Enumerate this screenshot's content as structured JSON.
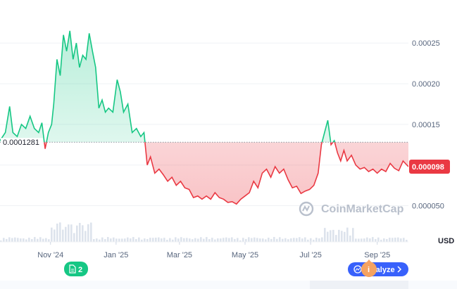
{
  "chart_data": {
    "type": "area",
    "currency_label": "USD",
    "watermark": "CoinMarketCap",
    "reference_value": 0.0001281,
    "reference_label": "0.0001281",
    "current_value": 9.8e-05,
    "current_label": "0.000098",
    "y_ticks": [
      "0.00025",
      "0.00020",
      "0.00015",
      "0.000050"
    ],
    "y_tick_values": [
      0.00025,
      0.0002,
      0.00015,
      5e-05
    ],
    "ylim": [
      5.5e-06,
      0.0002995
    ],
    "x_ticks": [
      "Nov '24",
      "Jan '25",
      "Mar '25",
      "May '25",
      "Jul '25",
      "Sep '25"
    ],
    "x_tick_dates": [
      "2024-11-01",
      "2025-01-01",
      "2025-03-01",
      "2025-05-01",
      "2025-07-01",
      "2025-09-01"
    ],
    "xlim": [
      "2024-09-15",
      "2025-09-30"
    ],
    "colors": {
      "above": "#16c784",
      "below": "#ea3943",
      "grid": "#eff2f5",
      "reference": "#8a939f"
    },
    "series": [
      {
        "values": [
          [
            "2024-09-15",
            0.00013
          ],
          [
            "2024-09-20",
            0.00014
          ],
          [
            "2024-09-24",
            0.000172
          ],
          [
            "2024-09-27",
            0.00014
          ],
          [
            "2024-10-01",
            0.000135
          ],
          [
            "2024-10-05",
            0.00015
          ],
          [
            "2024-10-09",
            0.000145
          ],
          [
            "2024-10-13",
            0.00016
          ],
          [
            "2024-10-17",
            0.000145
          ],
          [
            "2024-10-21",
            0.00014
          ],
          [
            "2024-10-24",
            0.000152
          ],
          [
            "2024-10-27",
            0.00012
          ],
          [
            "2024-10-30",
            0.00014
          ],
          [
            "2024-11-02",
            0.00015
          ],
          [
            "2024-11-04",
            0.000175
          ],
          [
            "2024-11-07",
            0.00023
          ],
          [
            "2024-11-10",
            0.00021
          ],
          [
            "2024-11-13",
            0.00026
          ],
          [
            "2024-11-16",
            0.00024
          ],
          [
            "2024-11-19",
            0.000265
          ],
          [
            "2024-11-22",
            0.00023
          ],
          [
            "2024-11-25",
            0.00025
          ],
          [
            "2024-11-28",
            0.00022
          ],
          [
            "2024-12-01",
            0.000235
          ],
          [
            "2024-12-04",
            0.00023
          ],
          [
            "2024-12-07",
            0.000262
          ],
          [
            "2024-12-10",
            0.00024
          ],
          [
            "2024-12-13",
            0.00022
          ],
          [
            "2024-12-16",
            0.00017
          ],
          [
            "2024-12-19",
            0.00018
          ],
          [
            "2024-12-22",
            0.000165
          ],
          [
            "2024-12-25",
            0.00017
          ],
          [
            "2024-12-29",
            0.000165
          ],
          [
            "2025-01-02",
            0.000205
          ],
          [
            "2025-01-05",
            0.00019
          ],
          [
            "2025-01-08",
            0.000165
          ],
          [
            "2025-01-12",
            0.000175
          ],
          [
            "2025-01-16",
            0.00014
          ],
          [
            "2025-01-20",
            0.000145
          ],
          [
            "2025-01-24",
            0.000135
          ],
          [
            "2025-01-27",
            0.00014
          ],
          [
            "2025-01-30",
            0.0001
          ],
          [
            "2025-02-02",
            0.00011
          ],
          [
            "2025-02-06",
            9e-05
          ],
          [
            "2025-02-10",
            9.5e-05
          ],
          [
            "2025-02-14",
            8.8e-05
          ],
          [
            "2025-02-18",
            8e-05
          ],
          [
            "2025-02-22",
            8.5e-05
          ],
          [
            "2025-02-26",
            7.5e-05
          ],
          [
            "2025-03-02",
            8e-05
          ],
          [
            "2025-03-06",
            7.2e-05
          ],
          [
            "2025-03-10",
            7e-05
          ],
          [
            "2025-03-14",
            6e-05
          ],
          [
            "2025-03-18",
            6.2e-05
          ],
          [
            "2025-03-22",
            5.8e-05
          ],
          [
            "2025-03-26",
            6.2e-05
          ],
          [
            "2025-03-30",
            5.8e-05
          ],
          [
            "2025-04-03",
            6.6e-05
          ],
          [
            "2025-04-07",
            6e-05
          ],
          [
            "2025-04-11",
            5.8e-05
          ],
          [
            "2025-04-15",
            5.4e-05
          ],
          [
            "2025-04-19",
            5.5e-05
          ],
          [
            "2025-04-23",
            5.2e-05
          ],
          [
            "2025-04-27",
            5.8e-05
          ],
          [
            "2025-05-01",
            6.2e-05
          ],
          [
            "2025-05-05",
            6.6e-05
          ],
          [
            "2025-05-09",
            8e-05
          ],
          [
            "2025-05-13",
            7.2e-05
          ],
          [
            "2025-05-17",
            9e-05
          ],
          [
            "2025-05-21",
            9.5e-05
          ],
          [
            "2025-05-25",
            8.5e-05
          ],
          [
            "2025-05-29",
            9.8e-05
          ],
          [
            "2025-06-02",
            9e-05
          ],
          [
            "2025-06-06",
            9.5e-05
          ],
          [
            "2025-06-10",
            8.2e-05
          ],
          [
            "2025-06-14",
            7.2e-05
          ],
          [
            "2025-06-18",
            7.4e-05
          ],
          [
            "2025-06-22",
            6.5e-05
          ],
          [
            "2025-06-26",
            6.8e-05
          ],
          [
            "2025-06-30",
            7e-05
          ],
          [
            "2025-07-04",
            7.5e-05
          ],
          [
            "2025-07-08",
            9e-05
          ],
          [
            "2025-07-11",
            0.000125
          ],
          [
            "2025-07-14",
            0.00014
          ],
          [
            "2025-07-17",
            0.000155
          ],
          [
            "2025-07-20",
            0.000125
          ],
          [
            "2025-07-23",
            0.00013
          ],
          [
            "2025-07-26",
            0.000115
          ],
          [
            "2025-07-29",
            0.000105
          ],
          [
            "2025-08-01",
            0.000118
          ],
          [
            "2025-08-04",
            0.000105
          ],
          [
            "2025-08-08",
            0.000112
          ],
          [
            "2025-08-12",
            0.0001
          ],
          [
            "2025-08-16",
            9.5e-05
          ],
          [
            "2025-08-20",
            9.7e-05
          ],
          [
            "2025-08-24",
            9.2e-05
          ],
          [
            "2025-08-28",
            9.5e-05
          ],
          [
            "2025-09-01",
            9e-05
          ],
          [
            "2025-09-05",
            9.5e-05
          ],
          [
            "2025-09-09",
            9.2e-05
          ],
          [
            "2025-09-13",
            0.000102
          ],
          [
            "2025-09-17",
            9.6e-05
          ],
          [
            "2025-09-21",
            9.3e-05
          ],
          [
            "2025-09-25",
            0.000105
          ],
          [
            "2025-09-30",
            9.8e-05
          ]
        ]
      }
    ]
  },
  "badges": {
    "news_count": "2",
    "analyze_label": "Analyze",
    "info_glyph": "i"
  }
}
